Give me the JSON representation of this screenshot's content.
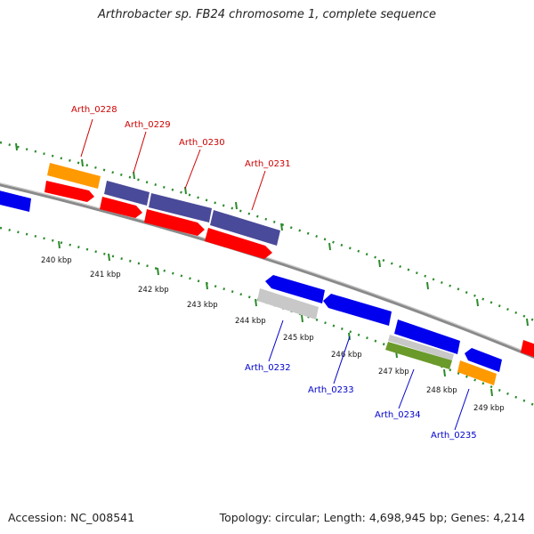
{
  "title": "Arthrobacter sp. FB24 chromosome 1, complete sequence",
  "footer": {
    "accession": "Accession: NC_008541",
    "stats": "Topology: circular; Length: 4,698,945 bp; Genes: 4,214"
  },
  "colors": {
    "label_forward": "#cc0000",
    "label_reverse": "#0000cc",
    "backbone": "#808080",
    "tick": "#2a8a2a",
    "cds_red": "#ff0000",
    "cds_blue": "#0000ee",
    "purple": "#4a4a9a",
    "orange": "#ff9900",
    "grey": "#c8c8c8",
    "olive": "#6a9a2a"
  },
  "kbp_labels": [
    "240 kbp",
    "241 kbp",
    "242 kbp",
    "243 kbp",
    "244 kbp",
    "245 kbp",
    "246 kbp",
    "247 kbp",
    "248 kbp",
    "249 kbp"
  ],
  "gene_labels_top": [
    "Arth_0228",
    "Arth_0229",
    "Arth_0230",
    "Arth_0231"
  ],
  "gene_labels_bottom": [
    "Arth_0232",
    "Arth_0233",
    "Arth_0234",
    "Arth_0235"
  ]
}
